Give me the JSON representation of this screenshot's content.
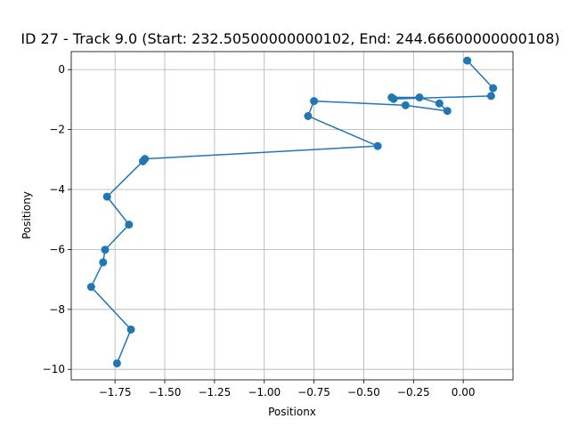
{
  "chart_data": {
    "type": "line",
    "title": "ID 27 - Track 9.0 (Start: 232.50500000000102, End: 244.66600000000108)",
    "xlabel": "Positionx",
    "ylabel": "Positiony",
    "xlim": [
      -1.97,
      0.25
    ],
    "ylim": [
      -10.35,
      0.6
    ],
    "grid": true,
    "marker": "circle",
    "color": "#1f77b4",
    "x_ticks": [
      {
        "value": -1.75,
        "label": "−1.75"
      },
      {
        "value": -1.5,
        "label": "−1.50"
      },
      {
        "value": -1.25,
        "label": "−1.25"
      },
      {
        "value": -1.0,
        "label": "−1.00"
      },
      {
        "value": -0.75,
        "label": "−0.75"
      },
      {
        "value": -0.5,
        "label": "−0.50"
      },
      {
        "value": -0.25,
        "label": "−0.25"
      },
      {
        "value": 0.0,
        "label": "0.00"
      }
    ],
    "y_ticks": [
      {
        "value": 0,
        "label": "0"
      },
      {
        "value": -2,
        "label": "−2"
      },
      {
        "value": -4,
        "label": "−4"
      },
      {
        "value": -6,
        "label": "−6"
      },
      {
        "value": -8,
        "label": "−8"
      },
      {
        "value": -10,
        "label": "−10"
      }
    ],
    "series": [
      {
        "x": [
          0.02,
          0.15,
          0.14,
          -0.35,
          -0.36,
          -0.22,
          -0.12,
          -0.08,
          -0.29,
          -0.75,
          -0.78,
          -0.43,
          -1.6,
          -1.61,
          -1.79,
          -1.68,
          -1.8,
          -1.81,
          -1.87,
          -1.67,
          -1.74
        ],
        "y": [
          0.3,
          -0.62,
          -0.88,
          -0.98,
          -0.93,
          -0.93,
          -1.13,
          -1.38,
          -1.19,
          -1.05,
          -1.55,
          -2.55,
          -2.98,
          -3.06,
          -4.24,
          -5.17,
          -6.01,
          -6.43,
          -7.25,
          -8.67,
          -9.8
        ]
      }
    ]
  }
}
